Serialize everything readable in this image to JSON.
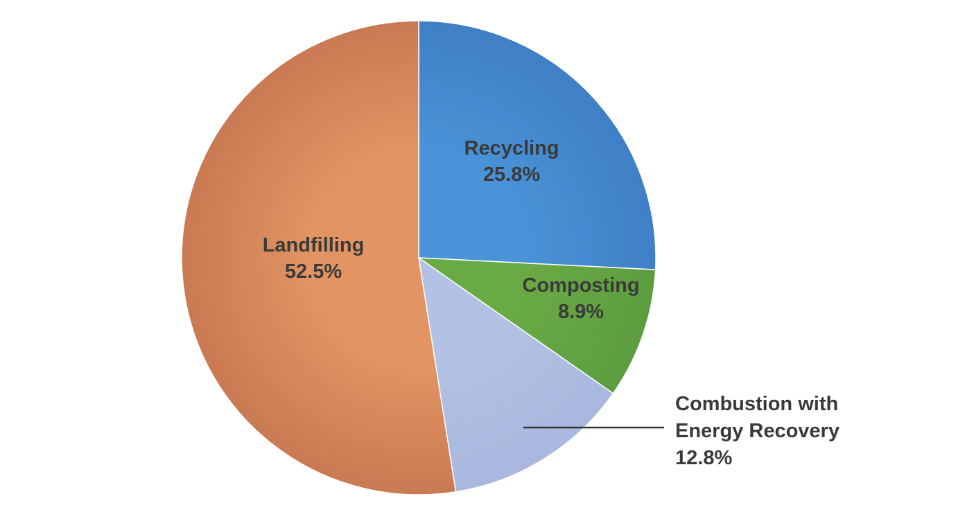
{
  "chart_data": {
    "type": "pie",
    "start_angle_deg": 0,
    "direction": "clockwise",
    "slices": [
      {
        "label": "Recycling",
        "value_label": "25.8%",
        "value": 25.8,
        "color": "#3f7fc6",
        "highlight": "#4a93d8"
      },
      {
        "label": "Composting",
        "value_label": "8.9%",
        "value": 8.9,
        "color": "#5c9d3f",
        "highlight": "#6aaa45"
      },
      {
        "label": [
          "Combustion with",
          "Energy Recovery"
        ],
        "value_label": "12.8%",
        "value": 12.8,
        "color": "#a9b8df",
        "highlight": "#b3c1e4",
        "callout": true
      },
      {
        "label": "Landfilling",
        "value_label": "52.5%",
        "value": 52.5,
        "color": "#c97a52",
        "highlight": "#e39463"
      }
    ]
  }
}
